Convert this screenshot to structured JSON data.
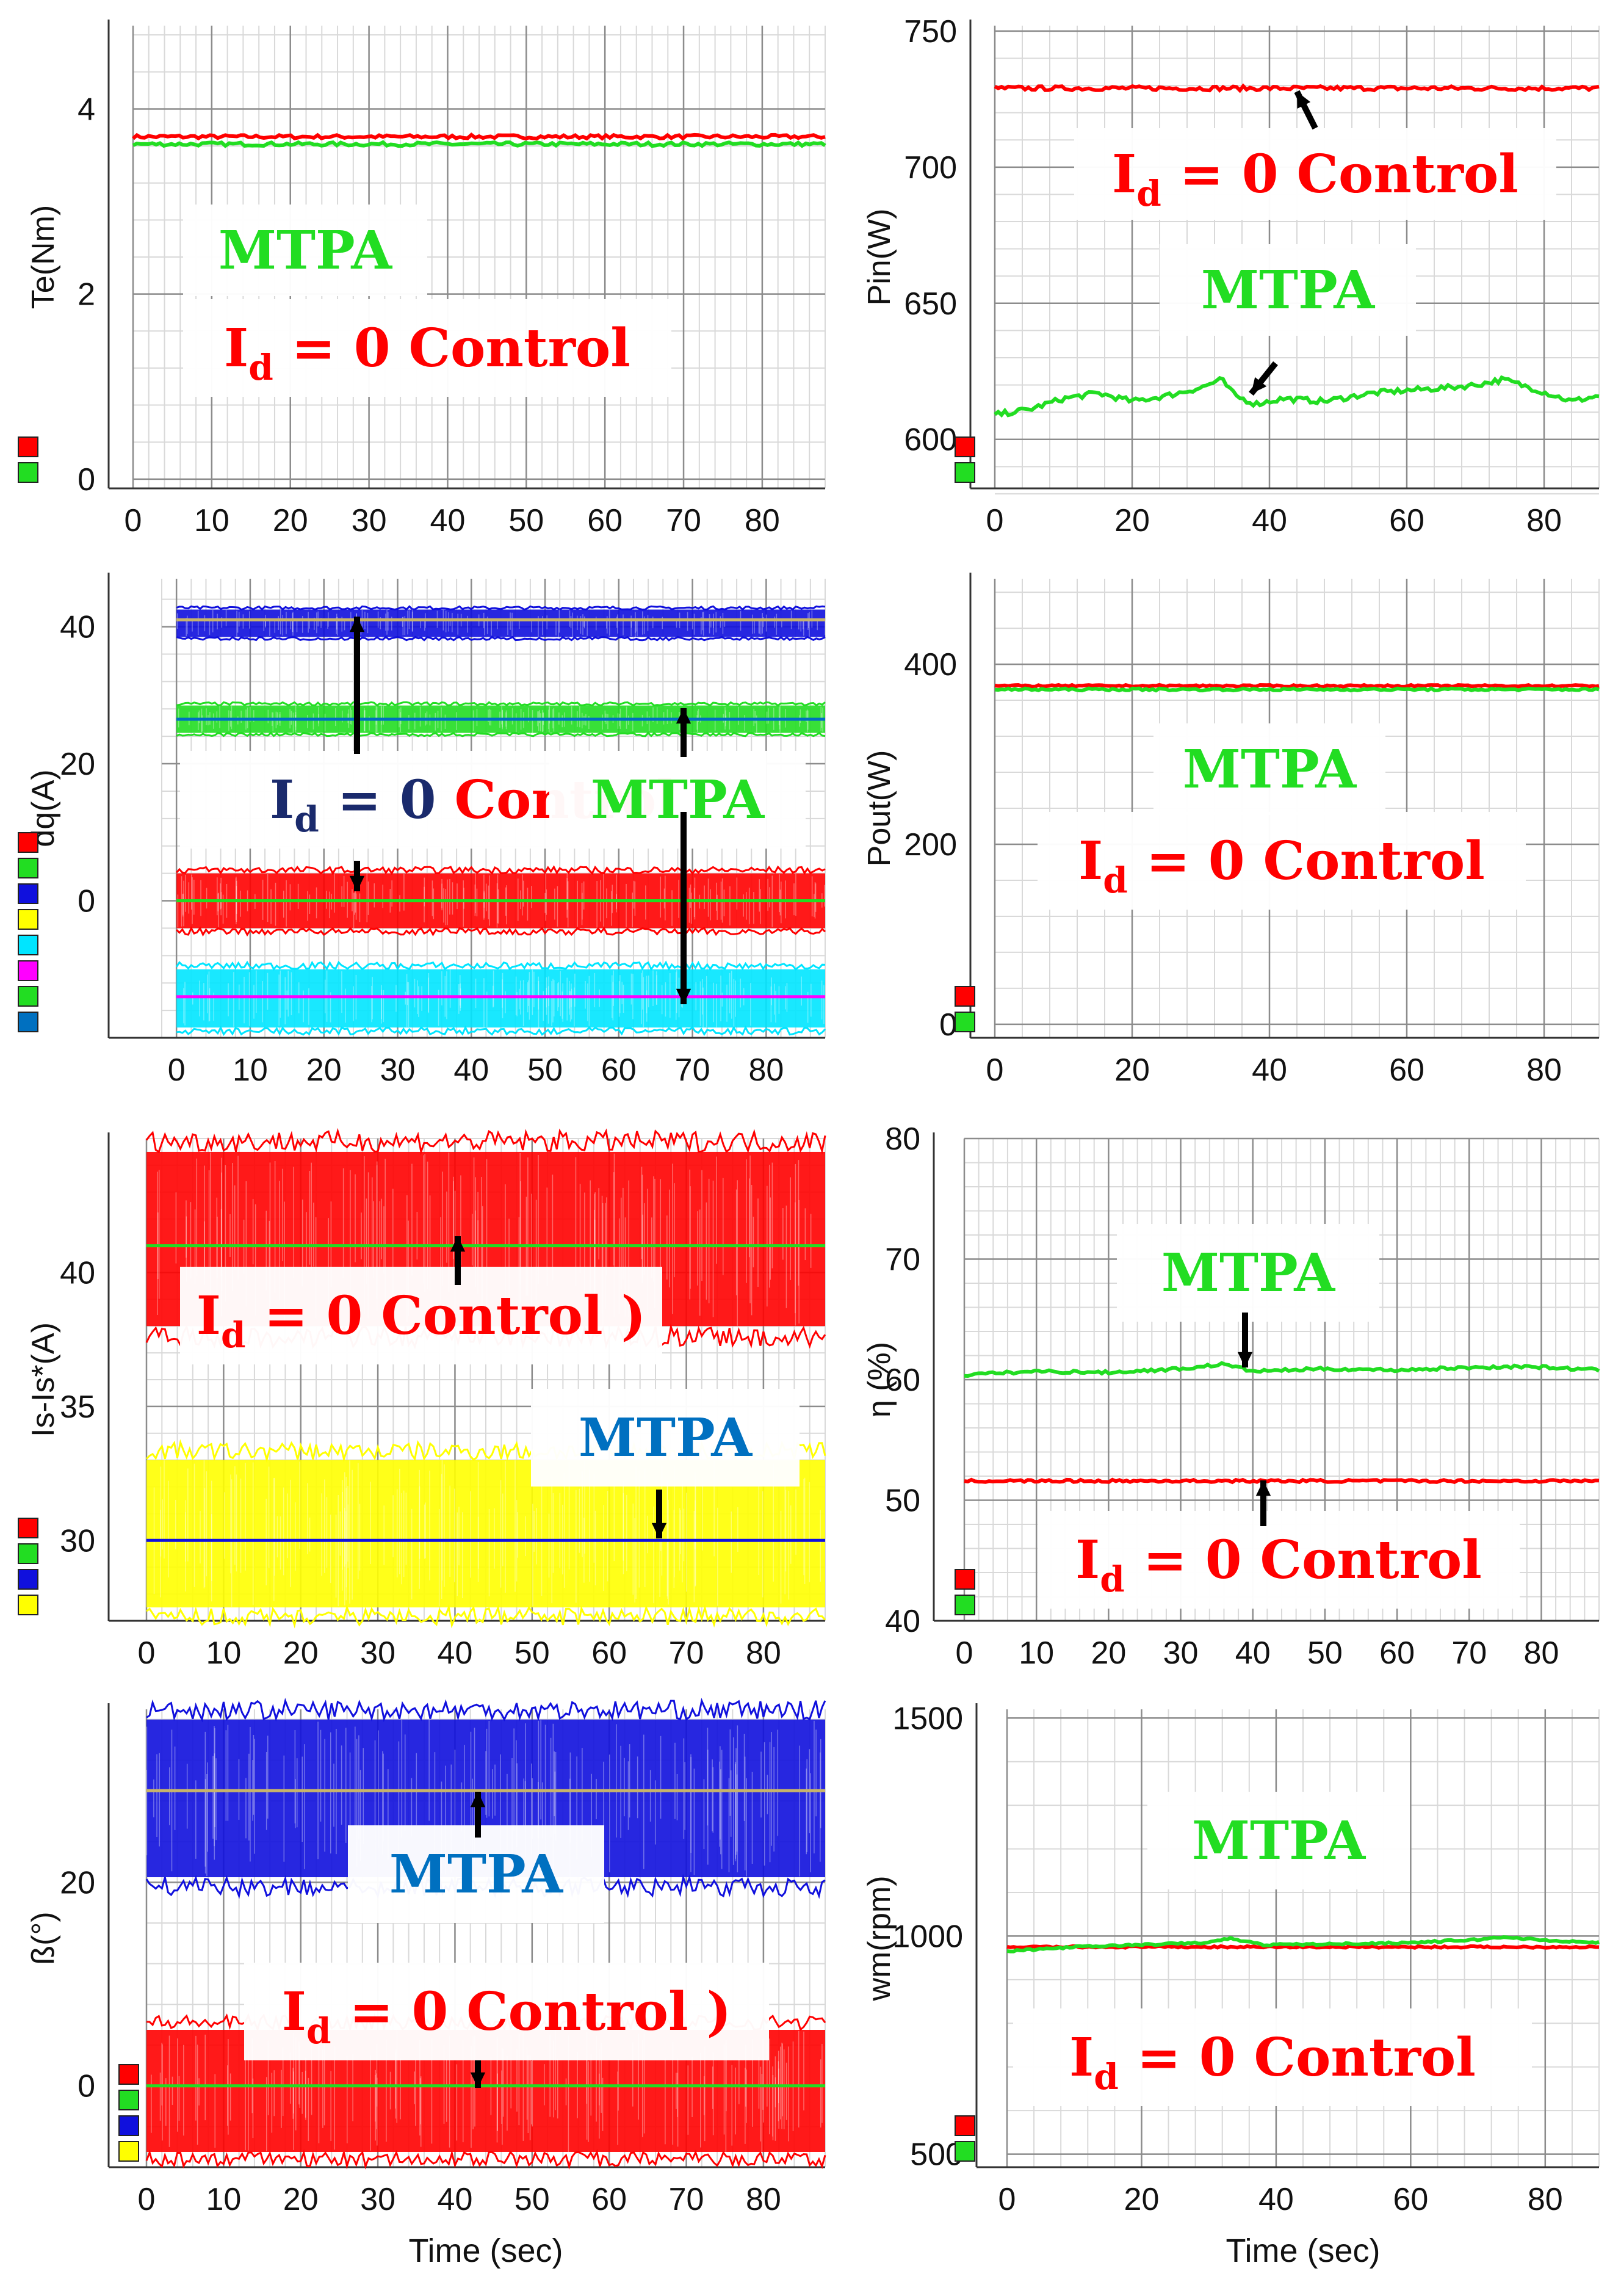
{
  "colors": {
    "red": "#ff0000",
    "green": "#22dd22",
    "blue": "#1010dd",
    "cyan": "#00e5ff",
    "yellow": "#ffff00",
    "magenta": "#ff00ff",
    "gold": "#c8b46a",
    "navy": "#1a2a6c",
    "mtpa_blue": "#0070c0",
    "grid_major": "#8c8c8c",
    "grid_minor": "#d9d9d9"
  },
  "chart_data": [
    {
      "id": "te",
      "type": "line",
      "ylabel": "Te(Nm)",
      "xlabel": "",
      "xlim": [
        0,
        88
      ],
      "ylim": [
        -0.1,
        4.9
      ],
      "xticks": [
        0,
        10,
        20,
        30,
        40,
        50,
        60,
        70,
        80
      ],
      "yticks": [
        0,
        2,
        4
      ],
      "series": [
        {
          "color": "red",
          "value": 3.7,
          "noise": 0.02
        },
        {
          "color": "green",
          "value": 3.62,
          "noise": 0.02
        }
      ],
      "legend": [
        "red",
        "green"
      ],
      "labels": [
        {
          "kind": "mtpa",
          "text": "MTPA"
        },
        {
          "kind": "id",
          "text": "I",
          "sub": "d",
          "rest": " = 0 Control"
        }
      ]
    },
    {
      "id": "pin",
      "type": "line",
      "ylabel": "Pin(W)",
      "xlabel": "",
      "xlim": [
        0,
        88
      ],
      "ylim": [
        582,
        752
      ],
      "xticks": [
        0,
        20,
        40,
        60,
        80
      ],
      "yticks": [
        600,
        650,
        700,
        750
      ],
      "series": [
        {
          "color": "red",
          "value": 729,
          "noise": 0.8
        },
        {
          "color": "green",
          "points": [
            [
              0,
              609
            ],
            [
              5,
              611
            ],
            [
              10,
              615
            ],
            [
              15,
              617
            ],
            [
              20,
              614
            ],
            [
              25,
              616
            ],
            [
              30,
              619
            ],
            [
              33,
              622
            ],
            [
              35,
              616
            ],
            [
              38,
              613
            ],
            [
              42,
              615
            ],
            [
              48,
              614
            ],
            [
              55,
              617
            ],
            [
              60,
              618
            ],
            [
              66,
              619
            ],
            [
              70,
              620
            ],
            [
              74,
              622
            ],
            [
              78,
              619
            ],
            [
              84,
              614
            ],
            [
              88,
              616
            ]
          ],
          "noise": 1.0
        }
      ],
      "legend": [
        "red",
        "green"
      ],
      "labels": [
        {
          "kind": "id",
          "text": "I",
          "sub": "d",
          "rest": " = 0 Control"
        },
        {
          "kind": "mtpa",
          "text": "MTPA"
        }
      ]
    },
    {
      "id": "idq",
      "type": "line",
      "ylabel": "dq(A)",
      "xlabel": "",
      "xlim": [
        -2,
        88
      ],
      "ylim": [
        -20,
        47
      ],
      "xticks": [
        0,
        10,
        20,
        30,
        40,
        50,
        60,
        70,
        80
      ],
      "yticks": [
        0,
        20,
        40
      ],
      "series": [
        {
          "color": "blue",
          "band": [
            38.5,
            42.5
          ]
        },
        {
          "color": "gold",
          "value": 41
        },
        {
          "color": "green",
          "band": [
            24.5,
            28.5
          ]
        },
        {
          "color": "mtpa_blue",
          "value": 26.5
        },
        {
          "color": "red",
          "band": [
            -4,
            4
          ]
        },
        {
          "color": "green",
          "value": 0
        },
        {
          "color": "cyan",
          "band": [
            -18.5,
            -10
          ]
        },
        {
          "color": "magenta",
          "value": -14
        }
      ],
      "legend": [
        "red",
        "green",
        "blue",
        "yellow",
        "cyan",
        "magenta",
        "green",
        "mtpa_blue"
      ],
      "labels": [
        {
          "kind": "id-navy",
          "text": "I",
          "sub": "d",
          "rest": " = 0 ",
          "tail": "Control"
        },
        {
          "kind": "mtpa-fade",
          "text": "MTPA"
        }
      ]
    },
    {
      "id": "pout",
      "type": "line",
      "ylabel": "Pout(W)",
      "xlabel": "",
      "xlim": [
        0,
        88
      ],
      "ylim": [
        -15,
        495
      ],
      "xticks": [
        0,
        20,
        40,
        60,
        80
      ],
      "yticks": [
        0,
        200,
        400
      ],
      "series": [
        {
          "color": "red",
          "value": 376,
          "noise": 1.0
        },
        {
          "color": "green",
          "value": 372,
          "noise": 1.2
        }
      ],
      "legend": [
        "red",
        "green"
      ],
      "labels": [
        {
          "kind": "mtpa",
          "text": "MTPA"
        },
        {
          "kind": "id",
          "text": "I",
          "sub": "d",
          "rest": " = 0 Control"
        }
      ]
    },
    {
      "id": "is",
      "type": "line",
      "ylabel": "Is-Is*(A)",
      "xlabel": "",
      "xlim": [
        0,
        88
      ],
      "ylim": [
        27,
        45
      ],
      "xticks": [
        0,
        10,
        20,
        30,
        40,
        50,
        60,
        70,
        80
      ],
      "yticks": [
        30,
        35,
        40
      ],
      "series": [
        {
          "color": "red",
          "band": [
            38,
            44.5
          ]
        },
        {
          "color": "green",
          "value": 41
        },
        {
          "color": "yellow",
          "band": [
            27.5,
            33
          ]
        },
        {
          "color": "blue",
          "value": 30
        }
      ],
      "legend": [
        "red",
        "green",
        "blue",
        "yellow"
      ],
      "labels": [
        {
          "kind": "id",
          "text": "I",
          "sub": "d",
          "rest": " = 0 Control )"
        },
        {
          "kind": "mtpa-blue",
          "text": "MTPA"
        }
      ]
    },
    {
      "id": "eta",
      "type": "line",
      "ylabel": "η (%)",
      "xlabel": "",
      "xlim": [
        0,
        88
      ],
      "ylim": [
        40,
        80
      ],
      "xticks": [
        0,
        10,
        20,
        30,
        40,
        50,
        60,
        70,
        80
      ],
      "yticks": [
        40,
        50,
        60,
        70,
        80
      ],
      "series": [
        {
          "color": "green",
          "points": [
            [
              0,
              60.4
            ],
            [
              10,
              60.7
            ],
            [
              20,
              60.6
            ],
            [
              30,
              60.9
            ],
            [
              36,
              61.3
            ],
            [
              40,
              60.7
            ],
            [
              50,
              60.9
            ],
            [
              60,
              60.8
            ],
            [
              70,
              61
            ],
            [
              78,
              61.1
            ],
            [
              88,
              60.8
            ]
          ],
          "noise": 0.12
        },
        {
          "color": "red",
          "value": 51.6,
          "noise": 0.1
        }
      ],
      "legend": [
        "red",
        "green"
      ],
      "labels": [
        {
          "kind": "mtpa",
          "text": "MTPA"
        },
        {
          "kind": "id",
          "text": "I",
          "sub": "d",
          "rest": " = 0 Control"
        }
      ]
    },
    {
      "id": "beta",
      "type": "line",
      "ylabel": "ß(°)",
      "xlabel": "Time (sec)",
      "xlim": [
        0,
        88
      ],
      "ylim": [
        -8,
        37
      ],
      "xticks": [
        0,
        10,
        20,
        30,
        40,
        50,
        60,
        70,
        80
      ],
      "yticks": [
        0,
        20
      ],
      "series": [
        {
          "color": "blue",
          "band": [
            20.5,
            36
          ]
        },
        {
          "color": "gold",
          "value": 29
        },
        {
          "color": "red",
          "band": [
            -6.5,
            5.5
          ]
        },
        {
          "color": "green",
          "value": 0
        }
      ],
      "legend": [
        "red",
        "green",
        "blue",
        "yellow"
      ],
      "labels": [
        {
          "kind": "mtpa-blue",
          "text": "MTPA"
        },
        {
          "kind": "id",
          "text": "I",
          "sub": "d",
          "rest": " = 0 Control )"
        }
      ]
    },
    {
      "id": "wm",
      "type": "line",
      "ylabel": "wm(rpm)",
      "xlabel": "Time (sec)",
      "xlim": [
        0,
        88
      ],
      "ylim": [
        470,
        1520
      ],
      "xticks": [
        0,
        20,
        40,
        60,
        80
      ],
      "yticks": [
        500,
        1000,
        1500
      ],
      "series": [
        {
          "color": "red",
          "value": 975,
          "noise": 2
        },
        {
          "color": "green",
          "points": [
            [
              0,
              965
            ],
            [
              10,
              975
            ],
            [
              20,
              980
            ],
            [
              30,
              985
            ],
            [
              33,
              995
            ],
            [
              38,
              980
            ],
            [
              50,
              982
            ],
            [
              60,
              985
            ],
            [
              70,
              992
            ],
            [
              74,
              998
            ],
            [
              80,
              990
            ],
            [
              88,
              985
            ]
          ],
          "noise": 2
        }
      ],
      "legend": [
        "red",
        "green"
      ],
      "labels": [
        {
          "kind": "mtpa",
          "text": "MTPA"
        },
        {
          "kind": "id",
          "text": "I",
          "sub": "d",
          "rest": " = 0 Control"
        }
      ]
    }
  ]
}
